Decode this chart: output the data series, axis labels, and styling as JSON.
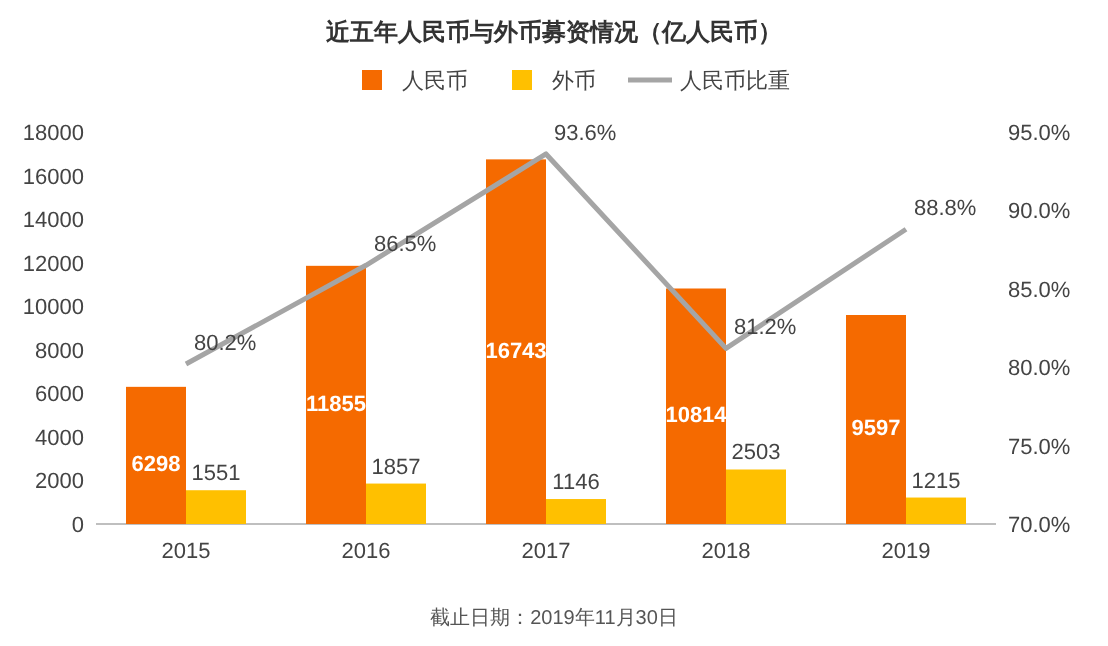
{
  "chart_data": {
    "type": "bar",
    "title": "近五年人民币与外币募资情况（亿人民币）",
    "categories": [
      "2015",
      "2016",
      "2017",
      "2018",
      "2019"
    ],
    "series": [
      {
        "name": "人民币",
        "color": "#f56a00",
        "values": [
          6298,
          11855,
          16743,
          10814,
          9597
        ],
        "value_labels": [
          "6298",
          "11855",
          "16743",
          "10814",
          "9597"
        ]
      },
      {
        "name": "外币",
        "color": "#ffc000",
        "values": [
          1551,
          1857,
          1146,
          2503,
          1215
        ],
        "value_labels": [
          "1551",
          "1857",
          "1146",
          "2503",
          "1215"
        ]
      },
      {
        "name": "人民币比重",
        "type": "line",
        "axis": "y2",
        "color": "#a5a5a5",
        "values": [
          80.2,
          86.5,
          93.6,
          81.2,
          88.8
        ],
        "value_labels": [
          "80.2%",
          "86.5%",
          "93.6%",
          "81.2%",
          "88.8%"
        ]
      }
    ],
    "ylim": [
      0,
      18000
    ],
    "yticks": [
      0,
      2000,
      4000,
      6000,
      8000,
      10000,
      12000,
      14000,
      16000,
      18000
    ],
    "y2lim": [
      70,
      95
    ],
    "y2ticks": [
      {
        "value": 70,
        "label": "70.0%"
      },
      {
        "value": 75,
        "label": "75.0%"
      },
      {
        "value": 80,
        "label": "80.0%"
      },
      {
        "value": 85,
        "label": "85.0%"
      },
      {
        "value": 90,
        "label": "90.0%"
      },
      {
        "value": 95,
        "label": "95.0%"
      }
    ],
    "legend": "top",
    "marker": "none",
    "annotations": [
      "截止日期：2019年11月30日"
    ]
  }
}
